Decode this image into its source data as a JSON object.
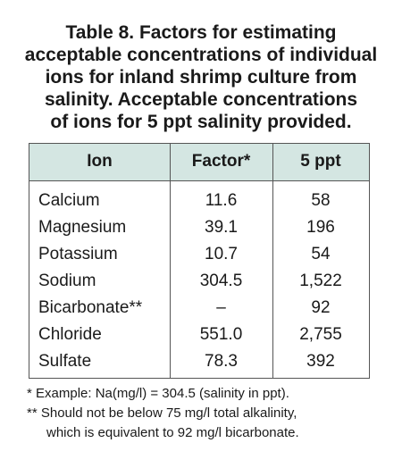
{
  "header": {
    "title_lines": [
      "Table 8. Factors for estimating",
      "acceptable concentrations of individual",
      "ions for inland shrimp culture from",
      "salinity. Acceptable concentrations",
      "of ions for 5 ppt salinity provided."
    ]
  },
  "table": {
    "columns": [
      "Ion",
      "Factor*",
      "5 ppt"
    ],
    "rows": [
      [
        "Calcium",
        "11.6",
        "58"
      ],
      [
        "Magnesium",
        "39.1",
        "196"
      ],
      [
        "Potassium",
        "10.7",
        "54"
      ],
      [
        "Sodium",
        "304.5",
        "1,522"
      ],
      [
        "Bicarbonate**",
        "–",
        "92"
      ],
      [
        "Chloride",
        "551.0",
        "2,755"
      ],
      [
        "Sulfate",
        "78.3",
        "392"
      ]
    ]
  },
  "footnotes": [
    "* Example: Na(mg/l) = 304.5 (salinity in ppt).",
    "** Should not be below 75 mg/l total alkalinity,",
    "which is equivalent to 92 mg/l bicarbonate."
  ]
}
